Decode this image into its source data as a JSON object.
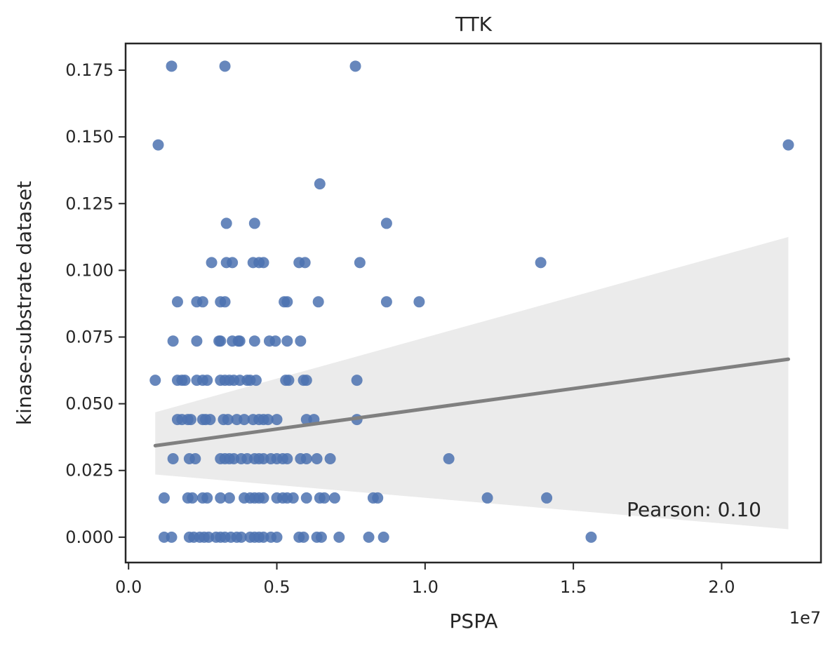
{
  "chart_data": {
    "type": "scatter",
    "title": "TTK",
    "xlabel": "PSPA",
    "ylabel": "kinase-substrate dataset",
    "x_offset_label": "1e7",
    "xlim": [
      -0.01,
      2.335
    ],
    "ylim": [
      -0.0095,
      0.185
    ],
    "x_ticks": [
      0.0,
      0.5,
      1.0,
      1.5,
      2.0
    ],
    "x_tick_labels": [
      "0.0",
      "0.5",
      "1.0",
      "1.5",
      "2.0"
    ],
    "y_ticks": [
      0.0,
      0.025,
      0.05,
      0.075,
      0.1,
      0.125,
      0.15,
      0.175
    ],
    "y_tick_labels": [
      "0.000",
      "0.025",
      "0.050",
      "0.075",
      "0.100",
      "0.125",
      "0.150",
      "0.175"
    ],
    "grid": false,
    "annotation": "Pearson: 0.10",
    "colors": {
      "points": "#4c72b0",
      "fit_line": "#808080",
      "ci_band": "#ebebeb",
      "axes": "#262626"
    },
    "regression": {
      "x": [
        0.09,
        2.225
      ],
      "y": [
        0.0343,
        0.0667
      ],
      "ci_lower": [
        0.0235,
        0.003
      ],
      "ci_upper": [
        0.0468,
        0.1125
      ]
    },
    "points": [
      [
        0.145,
        0.1765
      ],
      [
        0.325,
        0.1765
      ],
      [
        0.765,
        0.1765
      ],
      [
        0.1,
        0.147
      ],
      [
        2.225,
        0.147
      ],
      [
        0.645,
        0.1324
      ],
      [
        0.33,
        0.1176
      ],
      [
        0.425,
        0.1176
      ],
      [
        0.87,
        0.1176
      ],
      [
        0.28,
        0.1029
      ],
      [
        0.33,
        0.1029
      ],
      [
        0.35,
        0.1029
      ],
      [
        0.42,
        0.1029
      ],
      [
        0.44,
        0.1029
      ],
      [
        0.455,
        0.1029
      ],
      [
        0.575,
        0.1029
      ],
      [
        0.595,
        0.1029
      ],
      [
        0.78,
        0.1029
      ],
      [
        1.39,
        0.1029
      ],
      [
        0.165,
        0.0882
      ],
      [
        0.23,
        0.0882
      ],
      [
        0.25,
        0.0882
      ],
      [
        0.31,
        0.0882
      ],
      [
        0.325,
        0.0882
      ],
      [
        0.525,
        0.0882
      ],
      [
        0.535,
        0.0882
      ],
      [
        0.64,
        0.0882
      ],
      [
        0.87,
        0.0882
      ],
      [
        0.98,
        0.0882
      ],
      [
        0.15,
        0.0735
      ],
      [
        0.23,
        0.0735
      ],
      [
        0.305,
        0.0735
      ],
      [
        0.31,
        0.0735
      ],
      [
        0.35,
        0.0735
      ],
      [
        0.37,
        0.0735
      ],
      [
        0.375,
        0.0735
      ],
      [
        0.425,
        0.0735
      ],
      [
        0.475,
        0.0735
      ],
      [
        0.495,
        0.0735
      ],
      [
        0.535,
        0.0735
      ],
      [
        0.58,
        0.0735
      ],
      [
        0.09,
        0.0588
      ],
      [
        0.165,
        0.0588
      ],
      [
        0.18,
        0.0588
      ],
      [
        0.19,
        0.0588
      ],
      [
        0.23,
        0.0588
      ],
      [
        0.25,
        0.0588
      ],
      [
        0.265,
        0.0588
      ],
      [
        0.31,
        0.0588
      ],
      [
        0.325,
        0.0588
      ],
      [
        0.34,
        0.0588
      ],
      [
        0.355,
        0.0588
      ],
      [
        0.375,
        0.0588
      ],
      [
        0.4,
        0.0588
      ],
      [
        0.41,
        0.0588
      ],
      [
        0.43,
        0.0588
      ],
      [
        0.53,
        0.0588
      ],
      [
        0.54,
        0.0588
      ],
      [
        0.59,
        0.0588
      ],
      [
        0.6,
        0.0588
      ],
      [
        0.77,
        0.0588
      ],
      [
        0.165,
        0.0441
      ],
      [
        0.18,
        0.0441
      ],
      [
        0.2,
        0.0441
      ],
      [
        0.21,
        0.0441
      ],
      [
        0.25,
        0.0441
      ],
      [
        0.26,
        0.0441
      ],
      [
        0.275,
        0.0441
      ],
      [
        0.32,
        0.0441
      ],
      [
        0.335,
        0.0441
      ],
      [
        0.365,
        0.0441
      ],
      [
        0.39,
        0.0441
      ],
      [
        0.42,
        0.0441
      ],
      [
        0.44,
        0.0441
      ],
      [
        0.455,
        0.0441
      ],
      [
        0.47,
        0.0441
      ],
      [
        0.5,
        0.0441
      ],
      [
        0.6,
        0.0441
      ],
      [
        0.625,
        0.0441
      ],
      [
        0.77,
        0.0441
      ],
      [
        0.15,
        0.0294
      ],
      [
        0.205,
        0.0294
      ],
      [
        0.225,
        0.0294
      ],
      [
        0.31,
        0.0294
      ],
      [
        0.325,
        0.0294
      ],
      [
        0.34,
        0.0294
      ],
      [
        0.355,
        0.0294
      ],
      [
        0.38,
        0.0294
      ],
      [
        0.4,
        0.0294
      ],
      [
        0.425,
        0.0294
      ],
      [
        0.44,
        0.0294
      ],
      [
        0.455,
        0.0294
      ],
      [
        0.48,
        0.0294
      ],
      [
        0.5,
        0.0294
      ],
      [
        0.52,
        0.0294
      ],
      [
        0.535,
        0.0294
      ],
      [
        0.58,
        0.0294
      ],
      [
        0.6,
        0.0294
      ],
      [
        0.635,
        0.0294
      ],
      [
        0.68,
        0.0294
      ],
      [
        1.08,
        0.0294
      ],
      [
        0.12,
        0.0147
      ],
      [
        0.2,
        0.0147
      ],
      [
        0.215,
        0.0147
      ],
      [
        0.25,
        0.0147
      ],
      [
        0.265,
        0.0147
      ],
      [
        0.31,
        0.0147
      ],
      [
        0.34,
        0.0147
      ],
      [
        0.39,
        0.0147
      ],
      [
        0.41,
        0.0147
      ],
      [
        0.425,
        0.0147
      ],
      [
        0.44,
        0.0147
      ],
      [
        0.455,
        0.0147
      ],
      [
        0.5,
        0.0147
      ],
      [
        0.52,
        0.0147
      ],
      [
        0.535,
        0.0147
      ],
      [
        0.555,
        0.0147
      ],
      [
        0.6,
        0.0147
      ],
      [
        0.645,
        0.0147
      ],
      [
        0.66,
        0.0147
      ],
      [
        0.695,
        0.0147
      ],
      [
        0.825,
        0.0147
      ],
      [
        0.84,
        0.0147
      ],
      [
        1.21,
        0.0147
      ],
      [
        1.41,
        0.0147
      ],
      [
        0.12,
        0.0
      ],
      [
        0.145,
        0.0
      ],
      [
        0.205,
        0.0
      ],
      [
        0.22,
        0.0
      ],
      [
        0.24,
        0.0
      ],
      [
        0.255,
        0.0
      ],
      [
        0.27,
        0.0
      ],
      [
        0.295,
        0.0
      ],
      [
        0.31,
        0.0
      ],
      [
        0.325,
        0.0
      ],
      [
        0.345,
        0.0
      ],
      [
        0.365,
        0.0
      ],
      [
        0.38,
        0.0
      ],
      [
        0.41,
        0.0
      ],
      [
        0.425,
        0.0
      ],
      [
        0.44,
        0.0
      ],
      [
        0.455,
        0.0
      ],
      [
        0.48,
        0.0
      ],
      [
        0.5,
        0.0
      ],
      [
        0.575,
        0.0
      ],
      [
        0.59,
        0.0
      ],
      [
        0.635,
        0.0
      ],
      [
        0.65,
        0.0
      ],
      [
        0.71,
        0.0
      ],
      [
        0.81,
        0.0
      ],
      [
        0.86,
        0.0
      ],
      [
        1.56,
        0.0
      ]
    ]
  }
}
